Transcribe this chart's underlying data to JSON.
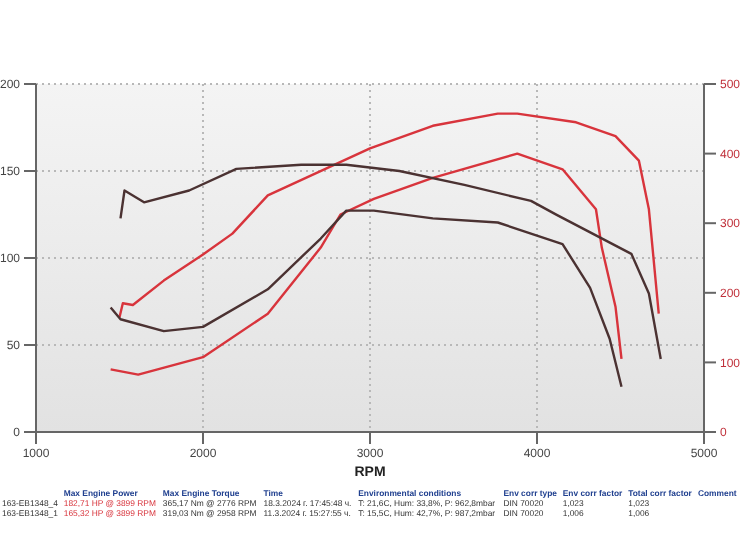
{
  "chart_data": {
    "type": "line",
    "xlabel": "RPM",
    "xlim": [
      1000,
      5000
    ],
    "xticks": [
      1000,
      2000,
      3000,
      4000,
      5000
    ],
    "ylim": [
      0,
      200
    ],
    "yticks": [
      0,
      50,
      100,
      150,
      200
    ],
    "y2lim": [
      0,
      500
    ],
    "y2ticks": [
      0,
      100,
      200,
      300,
      400,
      500
    ],
    "grid": true,
    "marker": "none",
    "line_style": "solid",
    "series": [
      {
        "color": "#d8343c",
        "x": [
          1500,
          1520,
          1580,
          1765,
          2000,
          2176,
          2388,
          3000,
          3376,
          3765,
          3882,
          4234,
          4470,
          4610,
          4670,
          4729
        ],
        "values": [
          66,
          74,
          73,
          87,
          102,
          114,
          136,
          163,
          176,
          183,
          183,
          178,
          170,
          156,
          128,
          68
        ]
      },
      {
        "color": "#d8343c",
        "x": [
          1447,
          1612,
          2000,
          2388,
          2705,
          2823,
          3023,
          3376,
          3882,
          4153,
          4353,
          4388,
          4470,
          4506
        ],
        "values": [
          36,
          33,
          43,
          68,
          106,
          125,
          134,
          146,
          160,
          151,
          128,
          106,
          72,
          42
        ]
      },
      {
        "color": "#4b3232",
        "axis": "y2",
        "x": [
          1506,
          1530,
          1647,
          1917,
          2200,
          2588,
          2858,
          3176,
          3565,
          3964,
          4118,
          4565,
          4670,
          4741
        ],
        "values": [
          307,
          347,
          330,
          347,
          378,
          384,
          384,
          375,
          355,
          332,
          312,
          256,
          199,
          105
        ]
      },
      {
        "color": "#4b3232",
        "axis": "y2",
        "x": [
          1447,
          1506,
          1765,
          2000,
          2388,
          2705,
          2858,
          3023,
          3376,
          3765,
          4153,
          4318,
          4435,
          4506
        ],
        "values": [
          179,
          162,
          145,
          151,
          205,
          278,
          318,
          318,
          307,
          301,
          270,
          207,
          134,
          65
        ]
      }
    ],
    "annotations": [
      "Max Engine Power",
      "Max Engine Torque",
      "Time",
      "Environmental conditions",
      "Env corr type",
      "Env corr factor",
      "Total corr factor",
      "Comment",
      "163-EB1348_4",
      "182,71 HP @ 3899 RPM",
      "365,17 Nm @ 2776 RPM",
      "18.3.2024 г. 17:45:48 ч.",
      "T: 21,6C, Hum: 33,8%, P: 962,8mbar",
      "DIN 70020",
      "1,023",
      "1,023",
      "163-EB1348_1",
      "165,32 HP @ 3899 RPM",
      "319,03 Nm @ 2958 RPM",
      "11.3.2024 г. 15:27:55 ч.",
      "T: 15,5C, Hum: 42,7%, P: 987,2mbar",
      "DIN 70020",
      "1,006",
      "1,006"
    ]
  }
}
